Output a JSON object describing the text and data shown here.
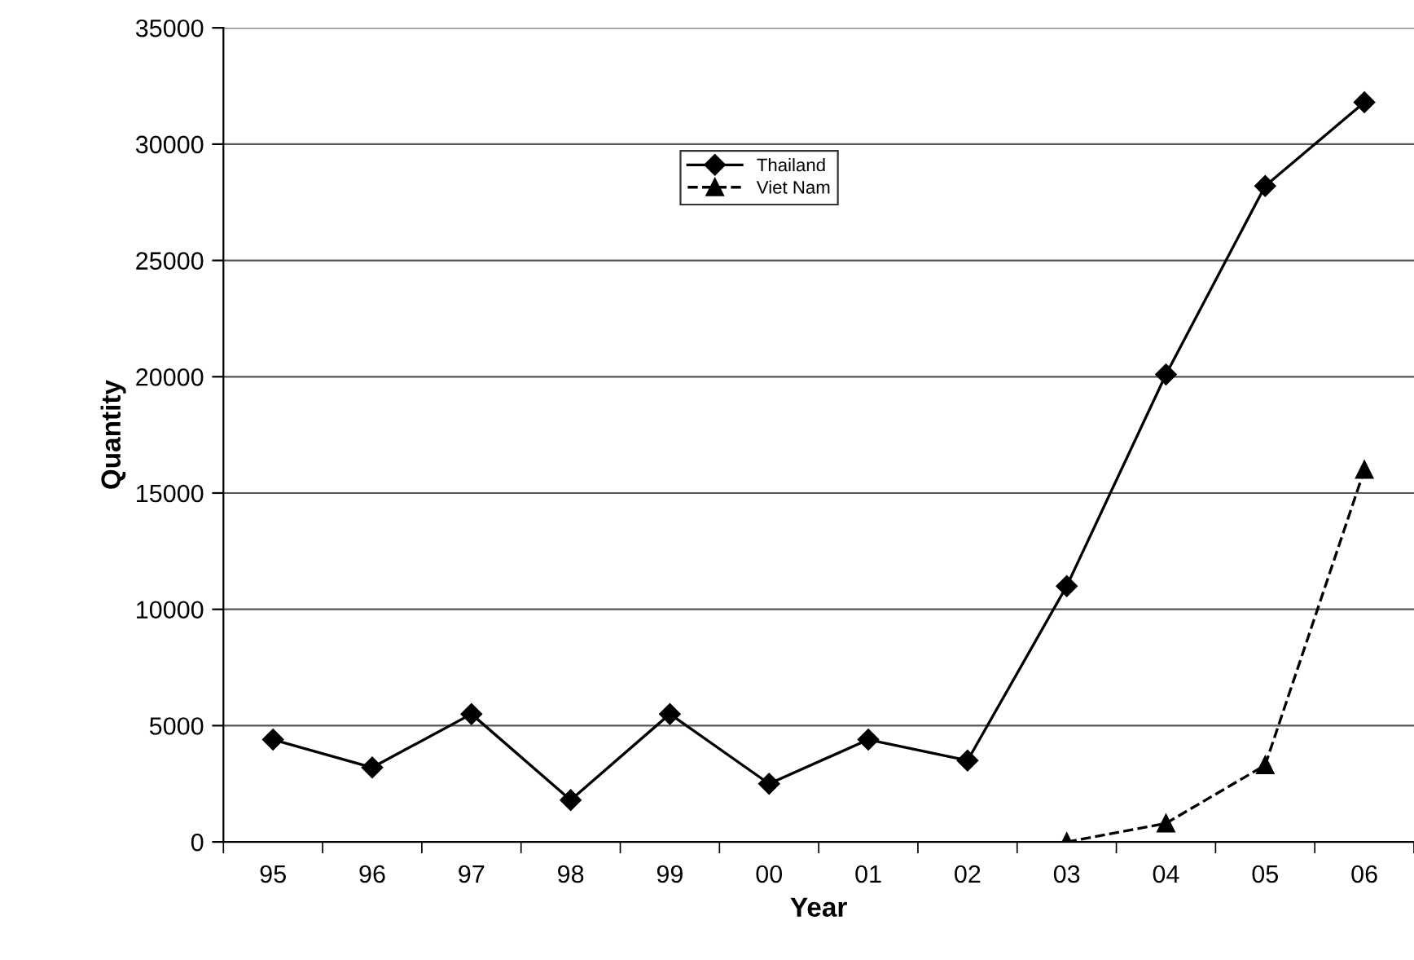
{
  "chart_data": {
    "type": "line",
    "xlabel": "Year",
    "ylabel": "Quantity",
    "categories": [
      "95",
      "96",
      "97",
      "98",
      "99",
      "00",
      "01",
      "02",
      "03",
      "04",
      "05",
      "06"
    ],
    "series": [
      {
        "name": "Thailand",
        "color": "#000000",
        "marker": "diamond",
        "line_style": "solid",
        "values": [
          4400,
          3200,
          5500,
          1800,
          5500,
          2500,
          4400,
          3500,
          11000,
          20100,
          28200,
          31800
        ]
      },
      {
        "name": "Viet Nam",
        "color": "#000000",
        "marker": "triangle",
        "line_style": "dashed",
        "values": [
          null,
          null,
          null,
          null,
          null,
          null,
          null,
          null,
          0,
          800,
          3300,
          16000
        ]
      }
    ],
    "ylim": [
      0,
      35000
    ],
    "yticks": [
      0,
      5000,
      10000,
      15000,
      20000,
      25000,
      30000,
      35000
    ],
    "grid": "y",
    "legend": "top"
  }
}
